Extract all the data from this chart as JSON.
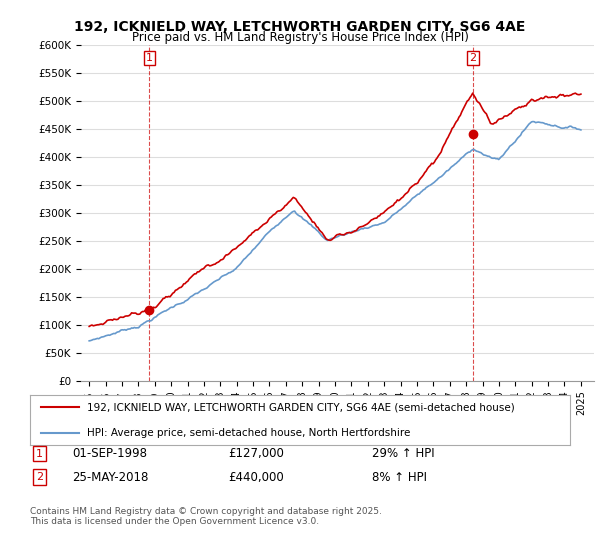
{
  "title": "192, ICKNIELD WAY, LETCHWORTH GARDEN CITY, SG6 4AE",
  "subtitle": "Price paid vs. HM Land Registry's House Price Index (HPI)",
  "legend_line1": "192, ICKNIELD WAY, LETCHWORTH GARDEN CITY, SG6 4AE (semi-detached house)",
  "legend_line2": "HPI: Average price, semi-detached house, North Hertfordshire",
  "annotation1_date": "01-SEP-1998",
  "annotation1_price": "£127,000",
  "annotation1_hpi": "29% ↑ HPI",
  "annotation2_date": "25-MAY-2018",
  "annotation2_price": "£440,000",
  "annotation2_hpi": "8% ↑ HPI",
  "copyright": "Contains HM Land Registry data © Crown copyright and database right 2025.\nThis data is licensed under the Open Government Licence v3.0.",
  "ylim": [
    0,
    600000
  ],
  "yticks": [
    0,
    50000,
    100000,
    150000,
    200000,
    250000,
    300000,
    350000,
    400000,
    450000,
    500000,
    550000,
    600000
  ],
  "ytick_labels": [
    "£0",
    "£50K",
    "£100K",
    "£150K",
    "£200K",
    "£250K",
    "£300K",
    "£350K",
    "£400K",
    "£450K",
    "£500K",
    "£550K",
    "£600K"
  ],
  "price_color": "#cc0000",
  "hpi_color": "#6699cc",
  "vline_color": "#cc0000",
  "background_color": "#ffffff",
  "grid_color": "#dddddd",
  "sale1_year": 1998.67,
  "sale1_price": 127000,
  "sale2_year": 2018.4,
  "sale2_price": 440000
}
